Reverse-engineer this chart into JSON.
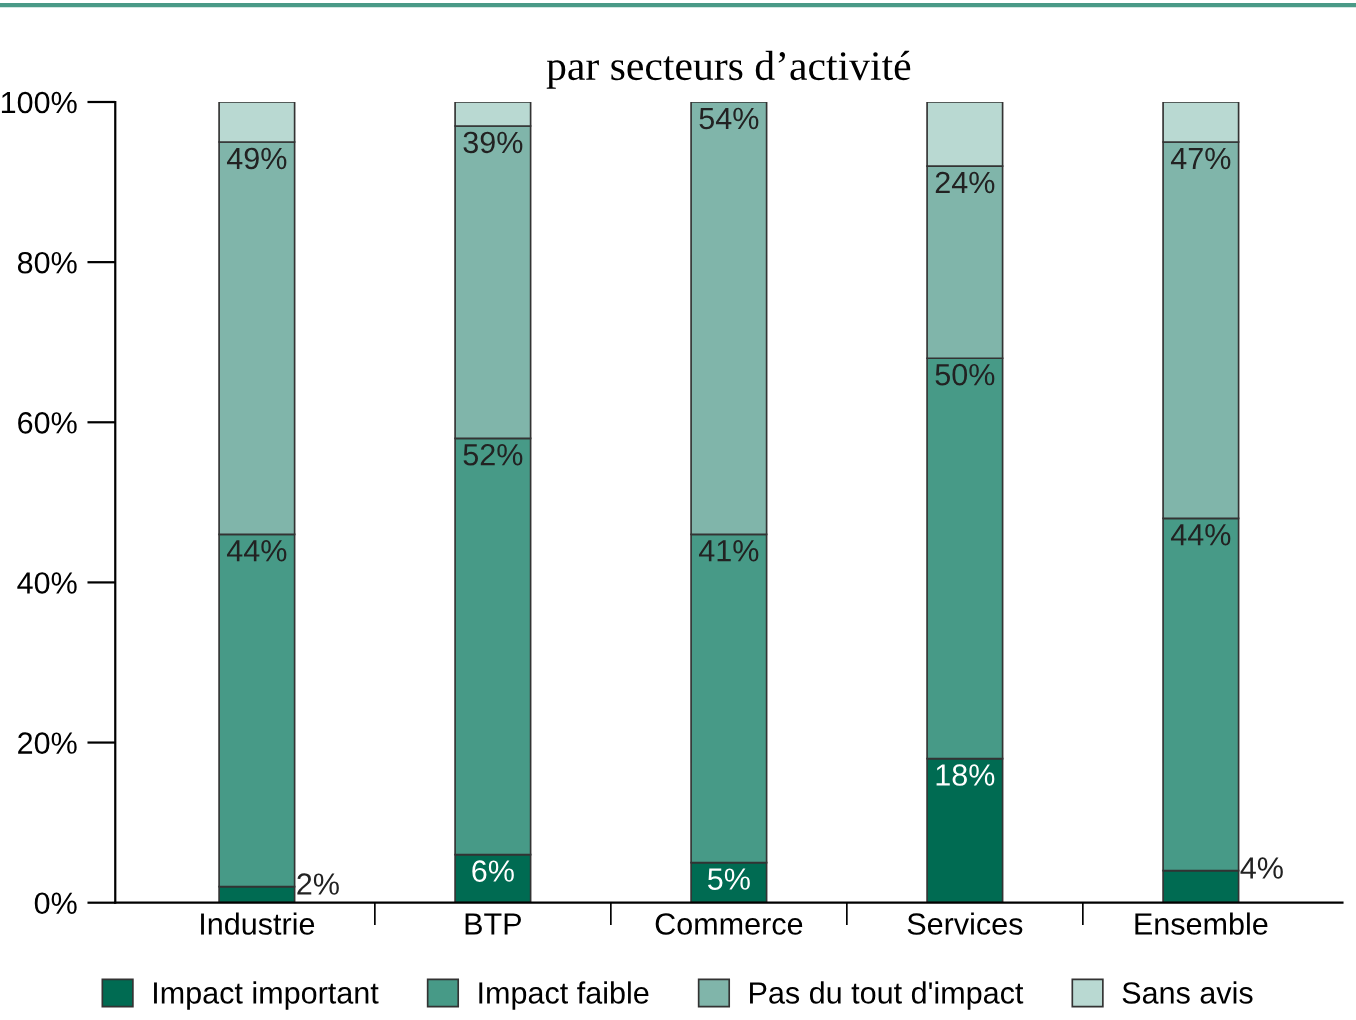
{
  "chart_data": {
    "type": "bar",
    "stacked": true,
    "title": "par secteurs d’activité",
    "categories": [
      "Industrie",
      "BTP",
      "Commerce",
      "Services",
      "Ensemble"
    ],
    "series": [
      {
        "name": "Impact important",
        "color": "#006b52",
        "values": [
          2,
          6,
          5,
          18,
          4
        ],
        "value_labels": [
          "2%",
          "6%",
          "5%",
          "18%",
          "4%"
        ]
      },
      {
        "name": "Impact faible",
        "color": "#479a87",
        "values": [
          44,
          52,
          41,
          50,
          44
        ],
        "value_labels": [
          "44%",
          "52%",
          "41%",
          "50%",
          "44%"
        ]
      },
      {
        "name": "Pas du tout d'impact",
        "color": "#80b5aa",
        "values": [
          49,
          39,
          54,
          24,
          47
        ],
        "value_labels": [
          "49%",
          "39%",
          "54%",
          "24%",
          "47%"
        ]
      },
      {
        "name": "Sans avis",
        "color": "#b9d9d2",
        "values": [
          5,
          3,
          0,
          8,
          5
        ]
      }
    ],
    "ylim": [
      0,
      100
    ],
    "yticks": [
      {
        "value": 0,
        "label": "0%"
      },
      {
        "value": 20,
        "label": "20%"
      },
      {
        "value": 40,
        "label": "40%"
      },
      {
        "value": 60,
        "label": "60%"
      },
      {
        "value": 80,
        "label": "80%"
      },
      {
        "value": 100,
        "label": "100%"
      }
    ],
    "grid": false,
    "legend": "bottom"
  }
}
